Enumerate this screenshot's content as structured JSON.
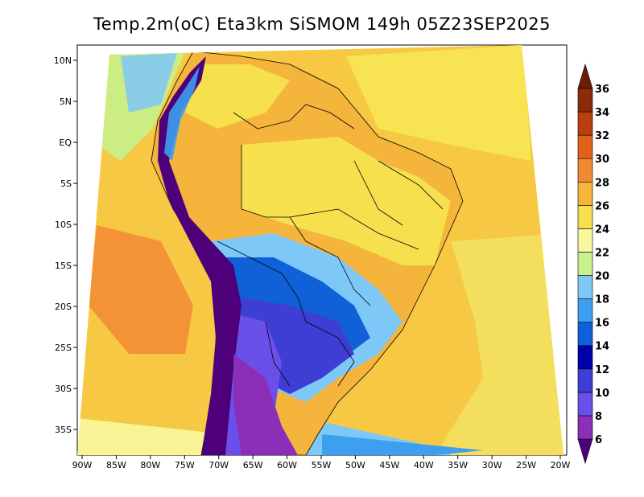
{
  "title": "Temp.2m(oC) Eta3km SiSMOM 149h 05Z23SEP2025",
  "colors": {
    "land_mid": "#f6e04e",
    "land_warm": "#f5b43c",
    "ocean": "#f6c843",
    "border": "#000000"
  },
  "chart_data": {
    "type": "heatmap",
    "title": "Temp.2m(oC) Eta3km SiSMOM 149h 05Z23SEP2025",
    "xlim": [
      -91,
      -20
    ],
    "ylim": [
      -38,
      12
    ],
    "x_ticks": [
      "90W",
      "85W",
      "80W",
      "75W",
      "70W",
      "65W",
      "60W",
      "55W",
      "50W",
      "45W",
      "40W",
      "35W",
      "30W",
      "25W",
      "20W"
    ],
    "y_ticks": [
      "10N",
      "5N",
      "EQ",
      "5S",
      "10S",
      "15S",
      "20S",
      "25S",
      "30S",
      "35S"
    ],
    "colorbar": {
      "levels": [
        "6",
        "8",
        "10",
        "12",
        "14",
        "16",
        "18",
        "20",
        "22",
        "24",
        "26",
        "28",
        "30",
        "32",
        "34",
        "36"
      ],
      "colors": [
        "#4d007a",
        "#8b2fb8",
        "#6a50e8",
        "#3e3ed4",
        "#0000a8",
        "#1060d8",
        "#3c9ff0",
        "#7ec8f8",
        "#c8f08c",
        "#f8f8a0",
        "#f6e04e",
        "#f5b43c",
        "#f28a34",
        "#e0601c",
        "#b8400e",
        "#8c2a0a",
        "#6a1c06"
      ]
    }
  }
}
